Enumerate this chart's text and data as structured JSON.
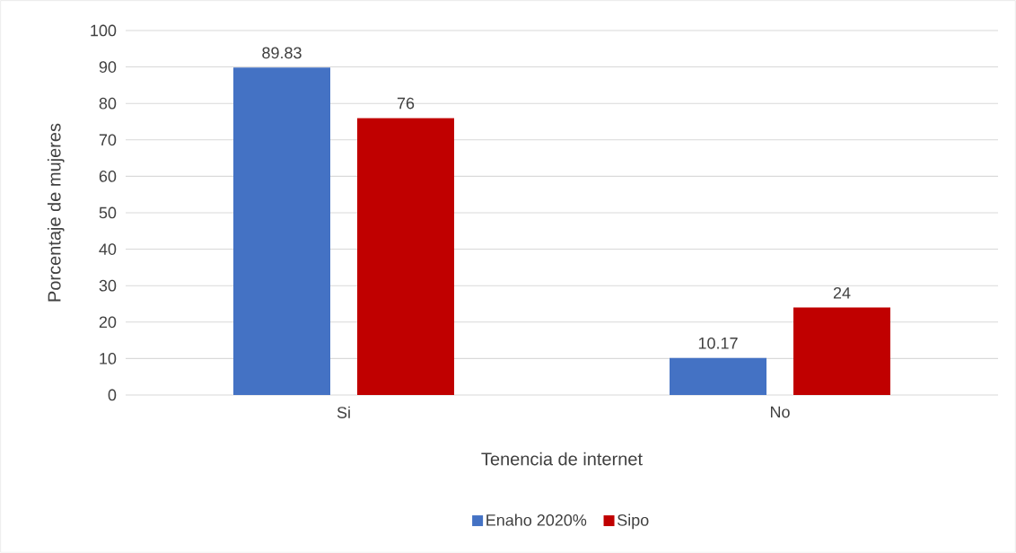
{
  "chart_data": {
    "type": "bar",
    "xlabel": "Tenencia de internet",
    "ylabel": "Porcentaje de mujeres",
    "categories": [
      "Si",
      "No"
    ],
    "series": [
      {
        "name": "Enaho 2020%",
        "color": "#4472c4",
        "values": [
          89.83,
          10.17
        ]
      },
      {
        "name": "Sipo",
        "color": "#c00000",
        "values": [
          76,
          24
        ]
      }
    ],
    "ylim": [
      0,
      100
    ],
    "yticks": [
      0,
      10,
      20,
      30,
      40,
      50,
      60,
      70,
      80,
      90,
      100
    ],
    "grid": "y",
    "legend": "bottom",
    "data_labels": true
  }
}
